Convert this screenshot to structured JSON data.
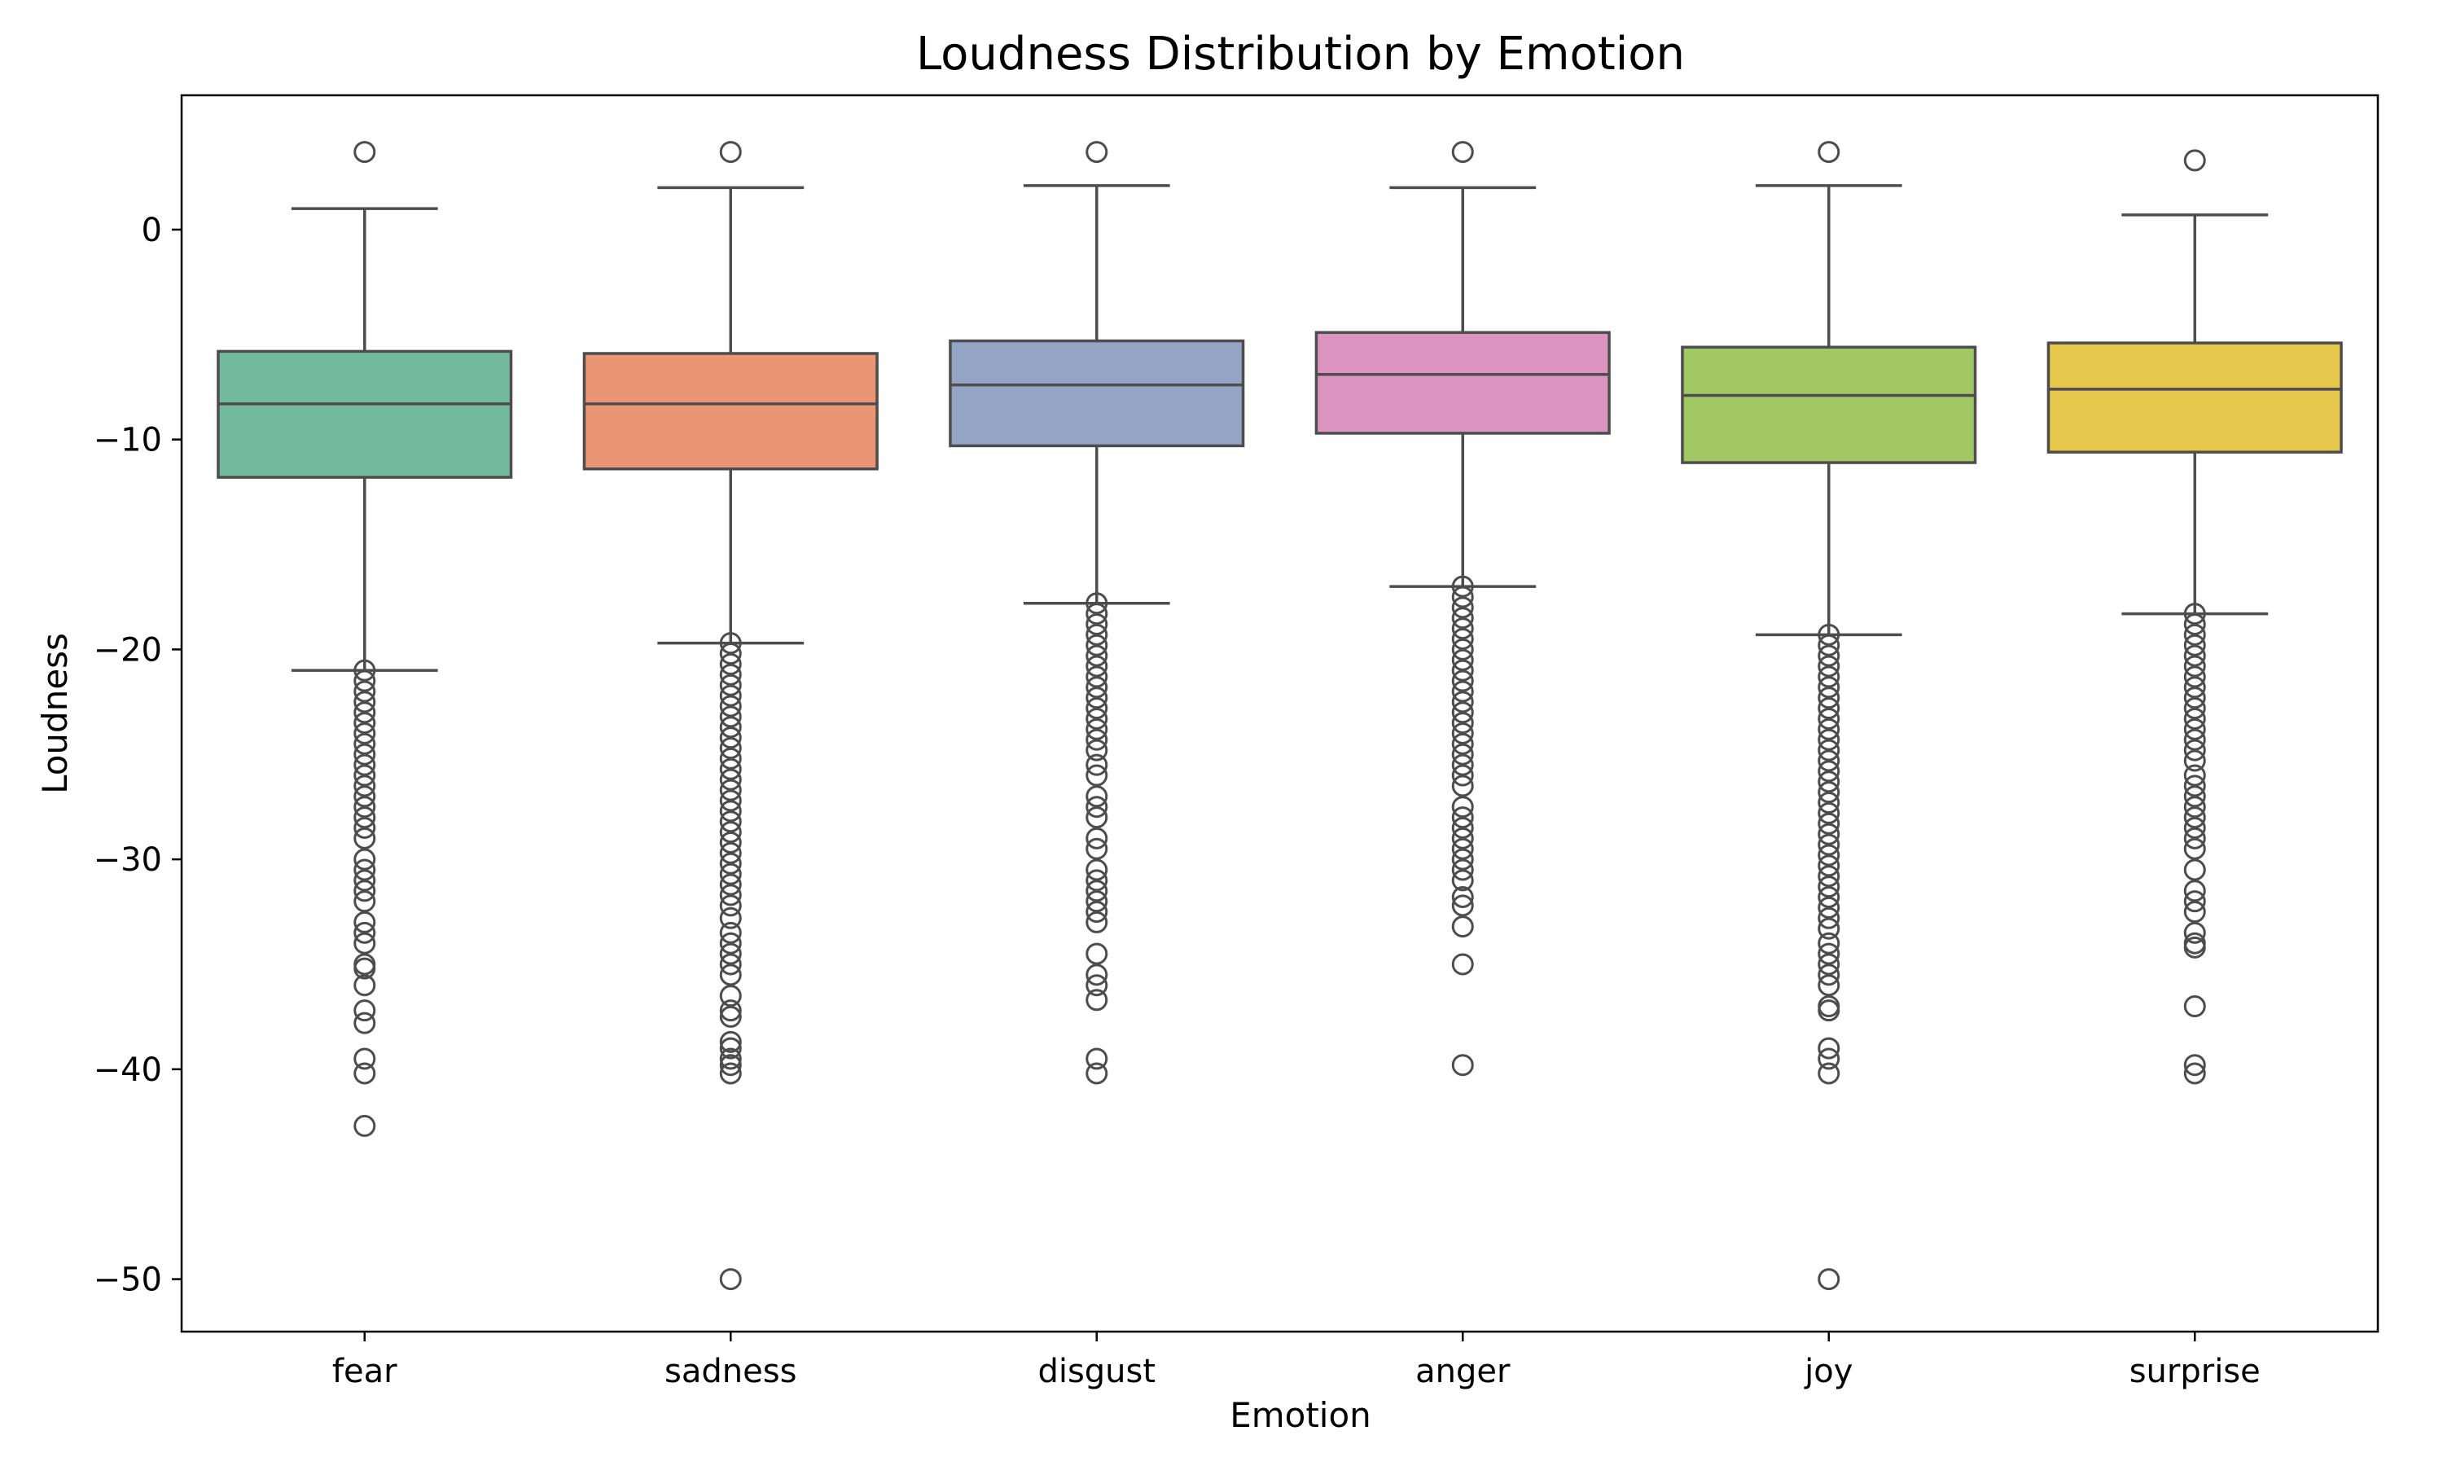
{
  "chart_data": {
    "type": "box",
    "title": "Loudness Distribution by Emotion",
    "xlabel": "Emotion",
    "ylabel": "Loudness",
    "ylim": [
      -52.5,
      6.4
    ],
    "yticks": [
      0,
      -10,
      -20,
      -30,
      -40,
      -50
    ],
    "ytick_labels": [
      "0",
      "−10",
      "−20",
      "−30",
      "−40",
      "−50"
    ],
    "grid": false,
    "categories": [
      "fear",
      "sadness",
      "disgust",
      "anger",
      "joy",
      "surprise"
    ],
    "series": [
      {
        "color": "#73b9a0",
        "whisker_high": 1.0,
        "q3": -5.8,
        "median": -8.3,
        "q1": -11.8,
        "whisker_low": -21.0,
        "outliers": [
          3.7,
          -21.0,
          -21.5,
          -22.0,
          -22.5,
          -23.0,
          -23.5,
          -24.0,
          -24.5,
          -25.0,
          -25.5,
          -26.0,
          -26.5,
          -27.0,
          -27.5,
          -28.0,
          -28.5,
          -29.0,
          -30.0,
          -30.5,
          -31.0,
          -31.5,
          -32.0,
          -33.0,
          -33.5,
          -34.0,
          -35.0,
          -35.2,
          -36.0,
          -37.2,
          -37.8,
          -39.5,
          -40.2,
          -42.7
        ]
      },
      {
        "color": "#ea9674",
        "whisker_high": 2.0,
        "q3": -5.9,
        "median": -8.3,
        "q1": -11.4,
        "whisker_low": -19.7,
        "outliers": [
          3.7,
          -19.7,
          -20.2,
          -20.7,
          -21.2,
          -21.7,
          -22.2,
          -22.7,
          -23.2,
          -23.7,
          -24.2,
          -24.7,
          -25.2,
          -25.7,
          -26.2,
          -26.7,
          -27.2,
          -27.7,
          -28.2,
          -28.7,
          -29.2,
          -29.7,
          -30.2,
          -30.7,
          -31.2,
          -31.7,
          -32.2,
          -32.8,
          -33.5,
          -34.0,
          -34.5,
          -35.0,
          -35.5,
          -36.5,
          -37.2,
          -37.5,
          -38.7,
          -39.0,
          -39.5,
          -39.8,
          -40.2,
          -50.0
        ]
      },
      {
        "color": "#93a4c5",
        "whisker_high": 2.1,
        "q3": -5.3,
        "median": -7.4,
        "q1": -10.3,
        "whisker_low": -17.8,
        "outliers": [
          3.7,
          -17.8,
          -18.3,
          -18.8,
          -19.3,
          -19.8,
          -20.3,
          -20.8,
          -21.3,
          -21.8,
          -22.3,
          -22.8,
          -23.3,
          -23.8,
          -24.3,
          -24.8,
          -25.5,
          -26.0,
          -27.0,
          -27.5,
          -28.0,
          -29.0,
          -29.5,
          -30.5,
          -31.0,
          -31.5,
          -32.0,
          -32.5,
          -33.0,
          -34.5,
          -35.5,
          -36.0,
          -36.7,
          -39.5,
          -40.2
        ]
      },
      {
        "color": "#dc94c0",
        "whisker_high": 2.0,
        "q3": -4.9,
        "median": -6.9,
        "q1": -9.7,
        "whisker_low": -17.0,
        "outliers": [
          3.7,
          -17.0,
          -17.5,
          -18.0,
          -18.5,
          -19.0,
          -19.5,
          -20.0,
          -20.5,
          -21.0,
          -21.5,
          -22.0,
          -22.5,
          -23.0,
          -23.5,
          -24.0,
          -24.5,
          -25.0,
          -25.5,
          -26.0,
          -26.5,
          -27.5,
          -28.0,
          -28.5,
          -29.0,
          -29.5,
          -30.0,
          -30.5,
          -31.0,
          -31.8,
          -32.2,
          -33.2,
          -35.0,
          -39.8
        ]
      },
      {
        "color": "#a2c866",
        "whisker_high": 2.1,
        "q3": -5.6,
        "median": -7.9,
        "q1": -11.1,
        "whisker_low": -19.3,
        "outliers": [
          3.7,
          -19.3,
          -19.8,
          -20.3,
          -20.8,
          -21.3,
          -21.8,
          -22.3,
          -22.8,
          -23.3,
          -23.8,
          -24.3,
          -24.8,
          -25.3,
          -25.8,
          -26.3,
          -26.8,
          -27.3,
          -27.8,
          -28.3,
          -28.8,
          -29.3,
          -29.8,
          -30.3,
          -30.8,
          -31.3,
          -31.8,
          -32.3,
          -32.8,
          -33.3,
          -34.0,
          -34.5,
          -35.0,
          -35.5,
          -36.0,
          -37.0,
          -37.2,
          -39.0,
          -39.5,
          -40.2,
          -50.0
        ]
      },
      {
        "color": "#e5c84b",
        "whisker_high": 0.7,
        "q3": -5.4,
        "median": -7.6,
        "q1": -10.6,
        "whisker_low": -18.3,
        "outliers": [
          3.3,
          -18.3,
          -18.8,
          -19.3,
          -19.8,
          -20.3,
          -20.8,
          -21.3,
          -21.8,
          -22.3,
          -22.8,
          -23.3,
          -23.8,
          -24.3,
          -24.8,
          -25.3,
          -26.0,
          -26.5,
          -27.0,
          -27.5,
          -28.0,
          -28.5,
          -29.0,
          -29.5,
          -30.5,
          -31.5,
          -32.0,
          -32.5,
          -33.5,
          -34.0,
          -34.2,
          -37.0,
          -39.8,
          -40.2
        ]
      }
    ]
  }
}
